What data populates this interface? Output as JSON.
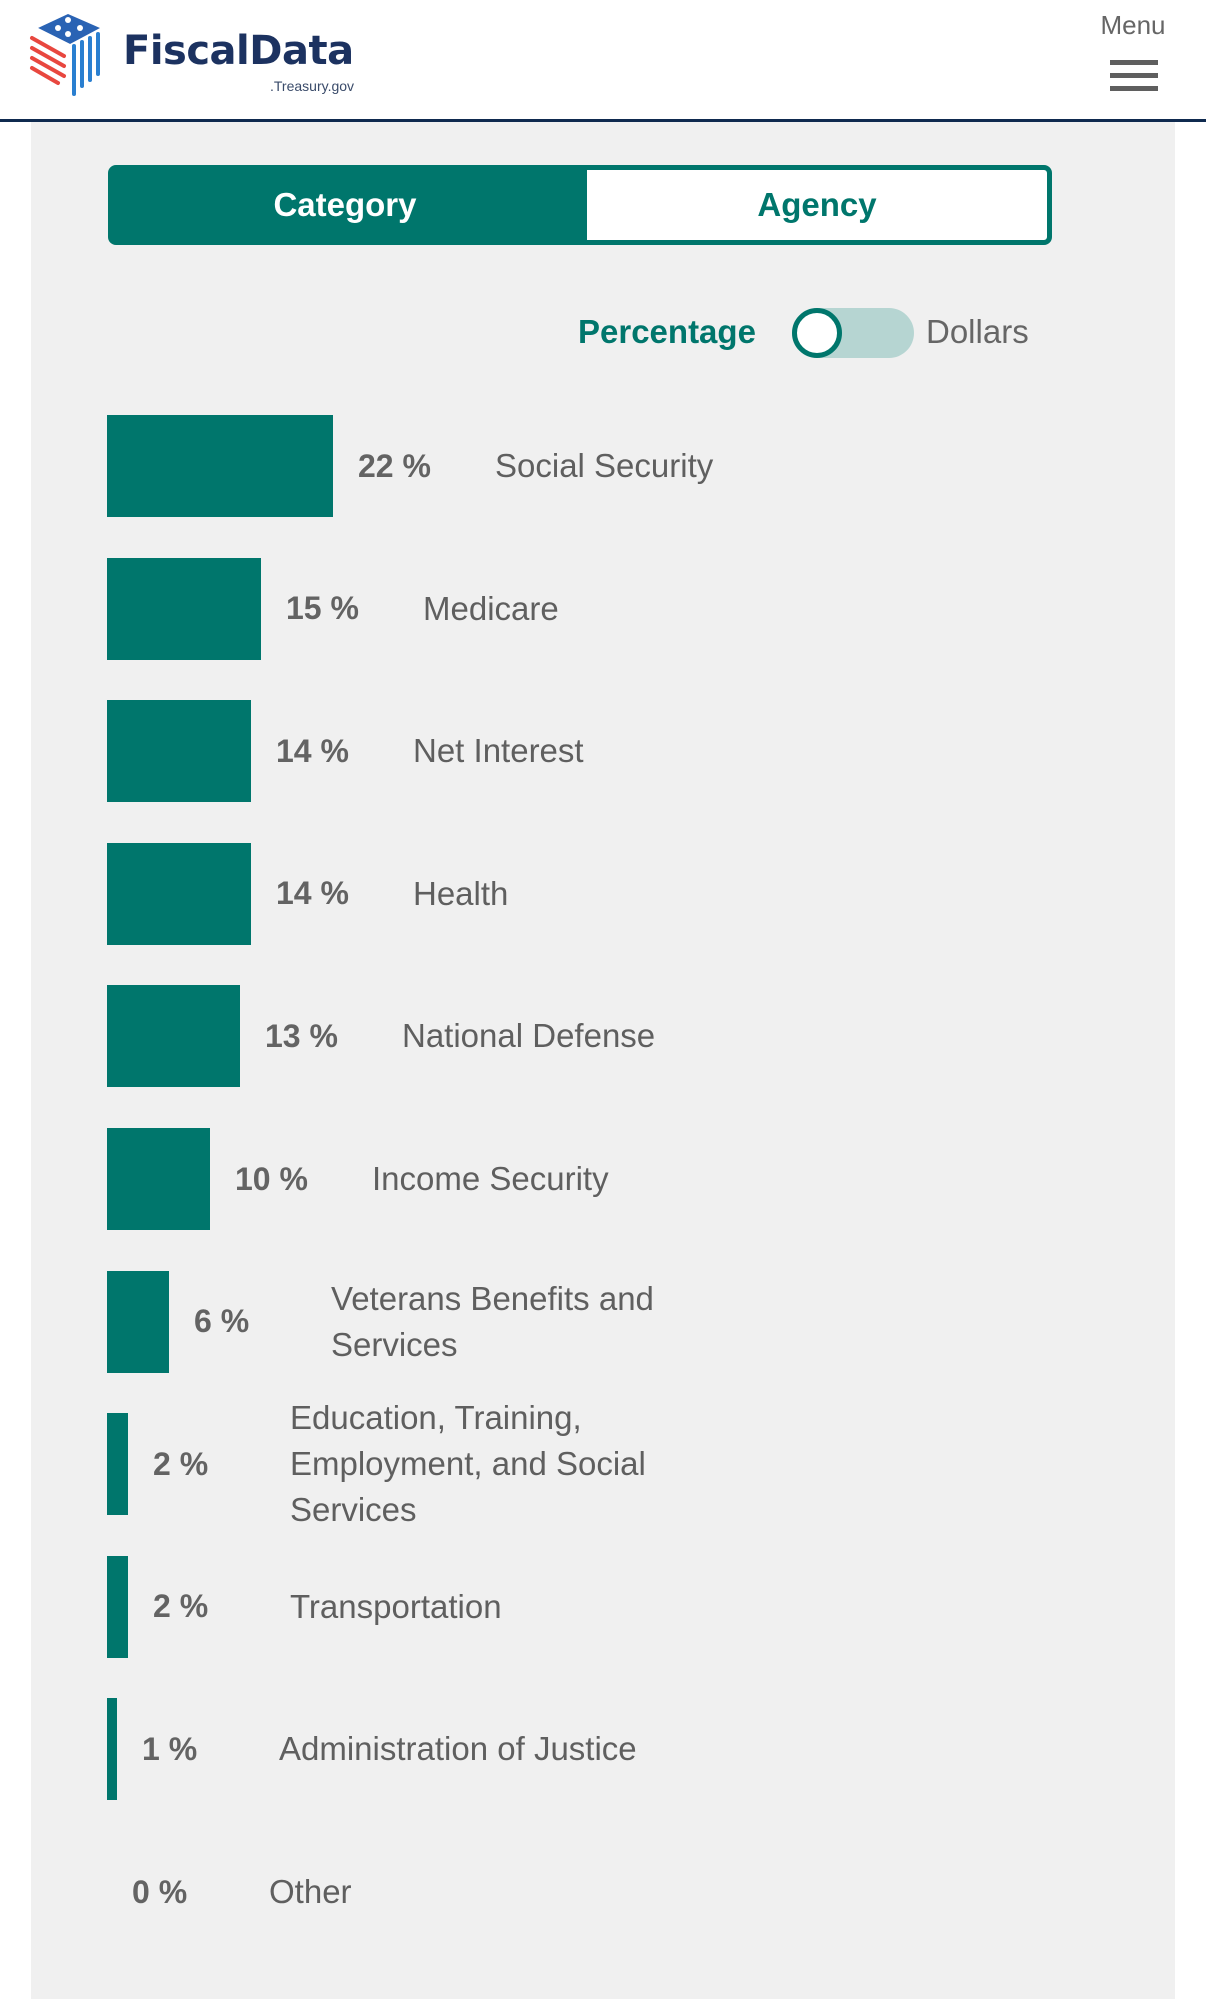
{
  "header": {
    "logo_text": "FiscalData",
    "logo_subtext": ".Treasury.gov",
    "menu_label": "Menu"
  },
  "view_toggle": {
    "options": [
      "Category",
      "Agency"
    ],
    "selected": "Category"
  },
  "unit_switch": {
    "left_label": "Percentage",
    "right_label": "Dollars",
    "selected": "Percentage"
  },
  "colors": {
    "accent": "#00766c",
    "switch_track": "#b6d5d2",
    "panel_bg": "#f0f0f0",
    "text_gray": "#636363",
    "header_rule": "#0f2a4f"
  },
  "chart_data": {
    "type": "bar",
    "orientation": "horizontal",
    "title": "",
    "xlabel": "",
    "ylabel": "",
    "unit": "%",
    "grid": false,
    "xlim": [
      0,
      100
    ],
    "categories": [
      "Social Security",
      "Medicare",
      "Net Interest",
      "Health",
      "National Defense",
      "Income Security",
      "Veterans Benefits and Services",
      "Education, Training, Employment, and Social Services",
      "Transportation",
      "Administration of Justice",
      "Other"
    ],
    "values": [
      22,
      15,
      14,
      14,
      13,
      10,
      6,
      2,
      2,
      1,
      0
    ],
    "value_labels": [
      "22 %",
      "15 %",
      "14 %",
      "14 %",
      "13 %",
      "10 %",
      "6 %",
      "2 %",
      "2 %",
      "1 %",
      "0 %"
    ]
  }
}
